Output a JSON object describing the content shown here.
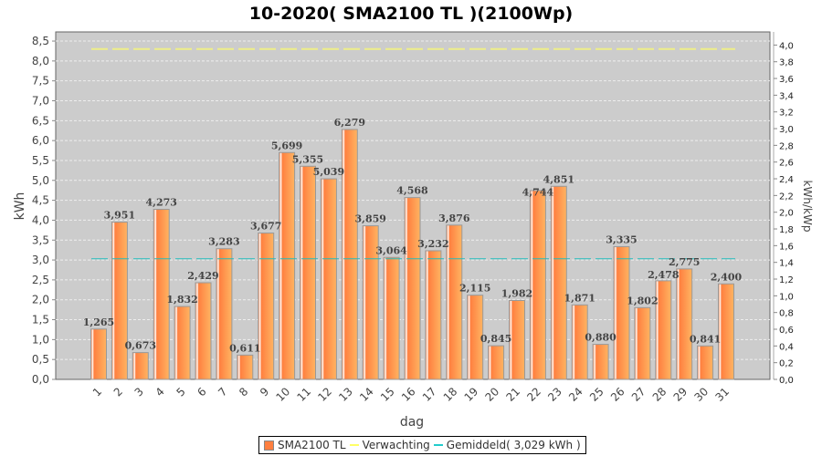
{
  "chart_data": {
    "type": "bar",
    "title": "10-2020( SMA2100 TL )(2100Wp)",
    "xlabel": "dag",
    "ylabel": "kWh",
    "ylabel_right": "kWh/kWp",
    "ylim": [
      0,
      8.73
    ],
    "ylim_right": [
      0,
      4.157
    ],
    "peak_kwp": 2.1,
    "yticks": [
      "0,0",
      "0,5",
      "1,0",
      "1,5",
      "2,0",
      "2,5",
      "3,0",
      "3,5",
      "4,0",
      "4,5",
      "5,0",
      "5,5",
      "6,0",
      "6,5",
      "7,0",
      "7,5",
      "8,0",
      "8,5"
    ],
    "yticks_right": [
      "0,0",
      "0,2",
      "0,4",
      "0,6",
      "0,8",
      "1,0",
      "1,2",
      "1,4",
      "1,6",
      "1,8",
      "2,0",
      "2,2",
      "2,4",
      "2,6",
      "2,8",
      "3,0",
      "3,2",
      "3,4",
      "3,6",
      "3,8",
      "4,0"
    ],
    "categories": [
      "1",
      "2",
      "3",
      "4",
      "5",
      "6",
      "7",
      "8",
      "9",
      "10",
      "11",
      "12",
      "13",
      "14",
      "15",
      "16",
      "17",
      "18",
      "19",
      "20",
      "21",
      "22",
      "23",
      "24",
      "25",
      "26",
      "27",
      "28",
      "29",
      "30",
      "31"
    ],
    "series": [
      {
        "name": "SMA2100 TL",
        "color": "#ff7f3f",
        "values": [
          1.265,
          3.951,
          0.673,
          4.273,
          1.832,
          2.429,
          3.283,
          0.611,
          3.677,
          5.699,
          5.355,
          5.039,
          6.279,
          3.859,
          3.064,
          4.568,
          3.232,
          3.876,
          2.115,
          0.845,
          1.982,
          4.744,
          4.851,
          1.871,
          0.88,
          3.335,
          1.802,
          2.478,
          2.775,
          0.841,
          2.4
        ],
        "labels": [
          "1,265",
          "3,951",
          "0,673",
          "4,273",
          "1,832",
          "2,429",
          "3,283",
          "0,611",
          "3,677",
          "5,699",
          "5,355",
          "5,039",
          "6,279",
          "3,859",
          "3,064",
          "4,568",
          "3,232",
          "3,876",
          "2,115",
          "0,845",
          "1,982",
          "4,744",
          "4,851",
          "1,871",
          "0,880",
          "3,335",
          "1,802",
          "2,478",
          "2,775",
          "0,841",
          "2,400"
        ]
      },
      {
        "name": "Verwachting",
        "color": "#ffff66",
        "value": 8.3
      },
      {
        "name": "Gemiddeld( 3,029 kWh )",
        "color": "#22bbbb",
        "value": 3.029
      }
    ],
    "grid": true,
    "legend_position": "bottom"
  }
}
